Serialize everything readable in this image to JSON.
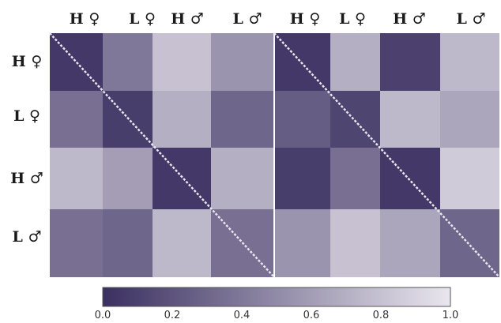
{
  "chart_data": {
    "type": "heatmap",
    "title": "",
    "xlabel": "",
    "ylabel": "",
    "panels": [
      {
        "columns": [
          "H ♀",
          "L ♀",
          "H ♂",
          "L ♂"
        ],
        "rows": [
          "H ♀",
          "L ♀",
          "H ♂",
          "L ♂"
        ],
        "values": [
          [
            0.05,
            0.4,
            0.8,
            0.55
          ],
          [
            0.35,
            0.08,
            0.7,
            0.3
          ],
          [
            0.75,
            0.6,
            0.05,
            0.7
          ],
          [
            0.35,
            0.3,
            0.75,
            0.35
          ]
        ]
      },
      {
        "columns": [
          "H ♀",
          "L ♀",
          "H ♂",
          "L ♂"
        ],
        "rows": [
          "H ♀",
          "L ♀",
          "H ♂",
          "L ♂"
        ],
        "values": [
          [
            0.05,
            0.7,
            0.1,
            0.75
          ],
          [
            0.25,
            0.12,
            0.75,
            0.65
          ],
          [
            0.08,
            0.35,
            0.05,
            0.85
          ],
          [
            0.55,
            0.8,
            0.65,
            0.3
          ]
        ]
      }
    ],
    "diagonal": 1.0,
    "colorbar": {
      "min": 0.0,
      "max": 1.0,
      "ticks": [
        "0.0",
        "0.2",
        "0.4",
        "0.6",
        "0.8",
        "1.0"
      ],
      "colors": [
        "#3a2f60",
        "#eae6ee"
      ]
    },
    "grid": false
  }
}
